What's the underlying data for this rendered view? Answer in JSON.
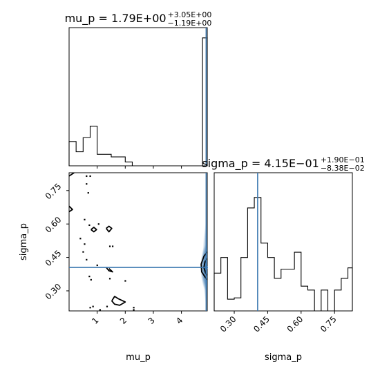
{
  "chart_data": [
    {
      "type": "histogram",
      "panel": "mu_p-marginal",
      "title_lhs": "mu_p = ",
      "title_value": "1.79E+00",
      "title_plus": "+3.05E+00",
      "title_minus": "−1.19E+00",
      "xlim": [
        0.0,
        4.92
      ],
      "bin_edges": [
        0.0,
        0.25,
        0.5,
        0.75,
        1.0,
        1.25,
        1.5,
        1.75,
        2.0,
        2.25,
        2.5,
        2.75,
        3.0,
        3.25,
        3.5,
        3.75,
        4.0,
        4.25,
        4.5,
        4.75,
        4.92
      ],
      "counts": [
        0.19,
        0.11,
        0.22,
        0.31,
        0.09,
        0.09,
        0.07,
        0.07,
        0.03,
        0.0,
        0.0,
        0.0,
        0.0,
        0.0,
        0.0,
        0.0,
        0.0,
        0.0,
        0.0,
        1.0
      ],
      "ylim": [
        0,
        1.08
      ],
      "truth": 4.88
    },
    {
      "type": "contour",
      "panel": "mu_p-vs-sigma_p",
      "xlabel": "mu_p",
      "ylabel": "sigma_p",
      "xlim": [
        0.0,
        4.92
      ],
      "ylim": [
        0.21,
        0.83
      ],
      "xticks": [
        1,
        2,
        3,
        4
      ],
      "xtick_labels": [
        "1",
        "2",
        "3",
        "4"
      ],
      "yticks": [
        0.3,
        0.45,
        0.6,
        0.75
      ],
      "ytick_labels": [
        "0.30",
        "0.45",
        "0.60",
        "0.75"
      ],
      "truth_x": 4.88,
      "truth_y": 0.405,
      "contours": [
        [
          [
            0.0,
            0.815
          ],
          [
            0.18,
            0.83
          ]
        ],
        [
          [
            0.0,
            0.68
          ],
          [
            0.12,
            0.665
          ],
          [
            0.0,
            0.655
          ]
        ],
        [
          [
            0.78,
            0.575
          ],
          [
            0.88,
            0.585
          ],
          [
            0.98,
            0.575
          ],
          [
            0.88,
            0.565
          ],
          [
            0.78,
            0.575
          ]
        ],
        [
          [
            1.32,
            0.58
          ],
          [
            1.42,
            0.59
          ],
          [
            1.52,
            0.58
          ],
          [
            1.42,
            0.565
          ],
          [
            1.32,
            0.58
          ]
        ],
        [
          [
            1.32,
            0.405
          ],
          [
            1.42,
            0.39
          ],
          [
            1.55,
            0.385
          ],
          [
            1.42,
            0.4
          ]
        ],
        [
          [
            1.52,
            0.255
          ],
          [
            1.62,
            0.275
          ],
          [
            1.75,
            0.265
          ],
          [
            2.0,
            0.25
          ],
          [
            1.8,
            0.235
          ],
          [
            1.62,
            0.24
          ],
          [
            1.52,
            0.255
          ]
        ],
        [
          [
            4.92,
            0.475
          ],
          [
            4.8,
            0.455
          ],
          [
            4.7,
            0.42
          ],
          [
            4.72,
            0.385
          ],
          [
            4.85,
            0.36
          ],
          [
            4.92,
            0.35
          ]
        ],
        [
          [
            4.92,
            0.445
          ],
          [
            4.84,
            0.43
          ],
          [
            4.8,
            0.405
          ],
          [
            4.86,
            0.38
          ],
          [
            4.92,
            0.37
          ]
        ]
      ],
      "specks": [
        [
          0.62,
          0.815
        ],
        [
          0.75,
          0.815
        ],
        [
          0.62,
          0.78
        ],
        [
          0.68,
          0.74
        ],
        [
          0.55,
          0.62
        ],
        [
          0.72,
          0.595
        ],
        [
          1.05,
          0.6
        ],
        [
          0.4,
          0.535
        ],
        [
          0.55,
          0.51
        ],
        [
          1.45,
          0.5
        ],
        [
          1.55,
          0.5
        ],
        [
          0.5,
          0.475
        ],
        [
          0.62,
          0.44
        ],
        [
          1.0,
          0.415
        ],
        [
          0.72,
          0.365
        ],
        [
          0.78,
          0.35
        ],
        [
          1.45,
          0.355
        ],
        [
          2.0,
          0.345
        ],
        [
          0.75,
          0.225
        ],
        [
          0.85,
          0.23
        ],
        [
          2.3,
          0.225
        ],
        [
          2.3,
          0.215
        ],
        [
          1.35,
          0.23
        ],
        [
          1.1,
          0.215
        ]
      ]
    },
    {
      "type": "histogram",
      "panel": "sigma_p-marginal",
      "title_lhs": "sigma_p = ",
      "title_value": "4.15E−01",
      "title_plus": "+1.90E−01",
      "title_minus": "−8.38E−02",
      "xlabel": "sigma_p",
      "xlim": [
        0.21,
        0.83
      ],
      "xticks": [
        0.3,
        0.45,
        0.6,
        0.75
      ],
      "xtick_labels": [
        "0.30",
        "0.45",
        "0.60",
        "0.75"
      ],
      "bin_edges": [
        0.21,
        0.24,
        0.27,
        0.3,
        0.33,
        0.36,
        0.39,
        0.42,
        0.45,
        0.48,
        0.51,
        0.54,
        0.57,
        0.6,
        0.63,
        0.66,
        0.69,
        0.72,
        0.75,
        0.78,
        0.81,
        0.83
      ],
      "counts": [
        0.29,
        0.41,
        0.09,
        0.1,
        0.41,
        0.79,
        0.87,
        0.52,
        0.41,
        0.25,
        0.32,
        0.32,
        0.45,
        0.19,
        0.16,
        0.0,
        0.16,
        0.0,
        0.16,
        0.25,
        0.33
      ],
      "ylim": [
        0,
        1.06
      ],
      "truth": 0.405
    }
  ]
}
